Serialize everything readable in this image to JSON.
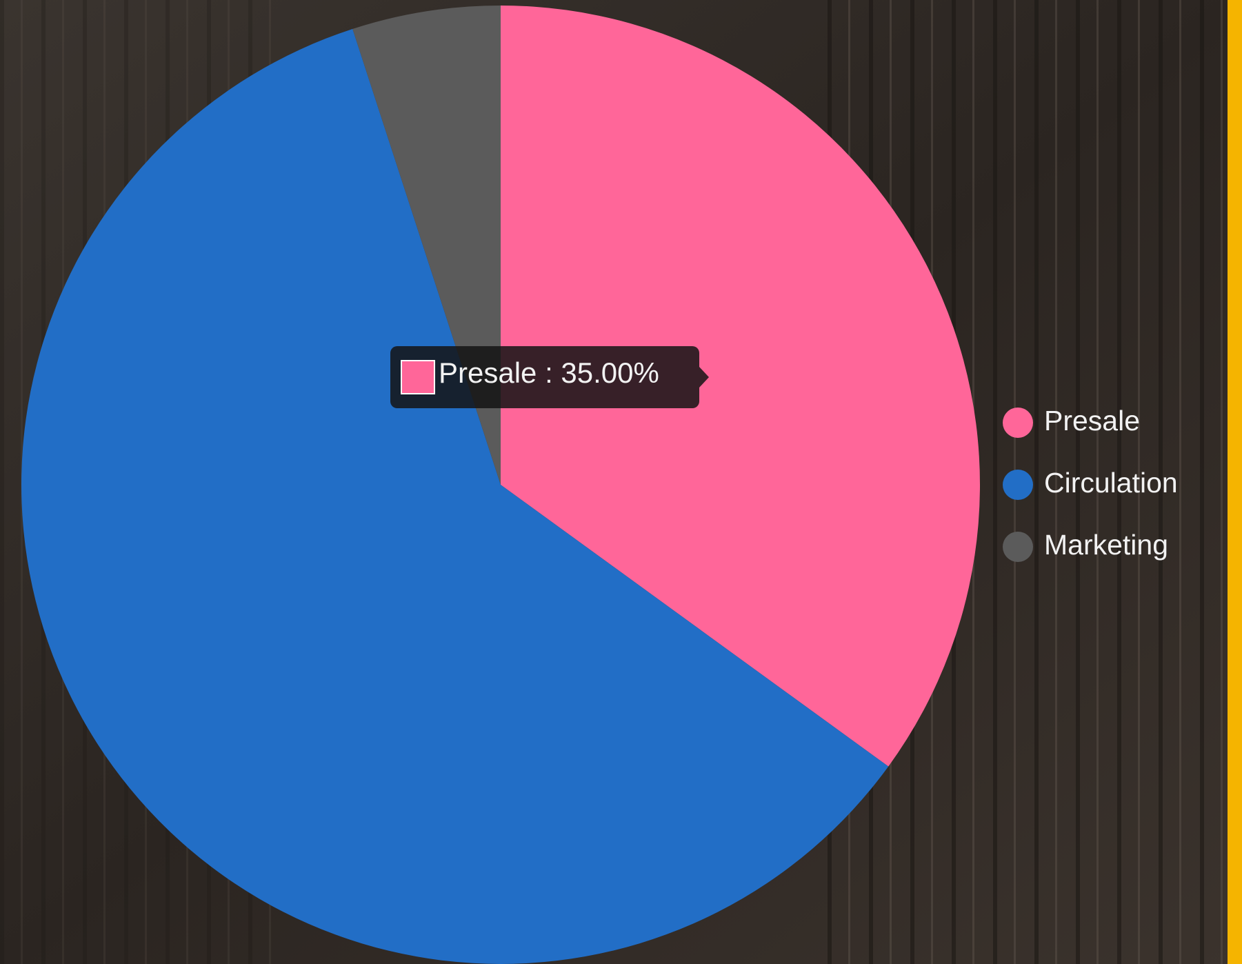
{
  "chart_data": {
    "type": "pie",
    "categories": [
      "Presale",
      "Circulation",
      "Marketing"
    ],
    "values": [
      35,
      60,
      5
    ],
    "colors": [
      "#ff6699",
      "#226ec6",
      "#5b5b5b"
    ],
    "legend": "right",
    "tooltip": "Presale : 35.00%"
  }
}
